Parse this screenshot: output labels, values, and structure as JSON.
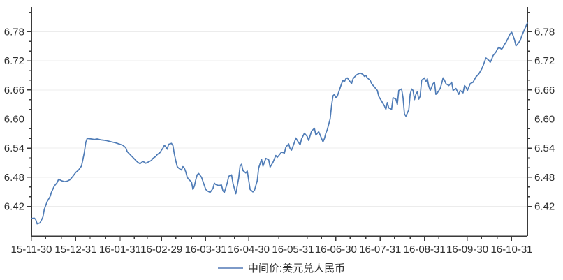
{
  "chart_data": {
    "type": "line",
    "title": "",
    "grid": "horizontal",
    "legend": {
      "label": "中间价:美元兑人民币",
      "position": "bottom-center"
    },
    "colors": {
      "line": "#4f7cb7",
      "legend_line": "#7d9ac8",
      "axis": "#3a3a3a",
      "grid": "#ececec",
      "text": "#2f2f2f",
      "background": "#ffffff"
    },
    "y_axis": {
      "mirrored_right": true,
      "range": [
        6.359,
        6.831
      ],
      "ticks": [
        {
          "v": 6.42,
          "label": "6.42"
        },
        {
          "v": 6.48,
          "label": "6.48"
        },
        {
          "v": 6.54,
          "label": "6.54"
        },
        {
          "v": 6.6,
          "label": "6.60"
        },
        {
          "v": 6.66,
          "label": "6.66"
        },
        {
          "v": 6.72,
          "label": "6.72"
        },
        {
          "v": 6.78,
          "label": "6.78"
        }
      ],
      "minor_ticks": [
        6.38,
        6.4,
        6.44,
        6.46,
        6.5,
        6.52,
        6.56,
        6.58,
        6.62,
        6.64,
        6.68,
        6.7,
        6.74,
        6.76,
        6.8,
        6.82
      ]
    },
    "x_axis": {
      "range": [
        "2015-11-30",
        "2016-11-11"
      ],
      "ticks": [
        {
          "date": "2015-11-30",
          "label": "15-11-30"
        },
        {
          "date": "2015-12-31",
          "label": "15-12-31"
        },
        {
          "date": "2016-01-31",
          "label": "16-01-31"
        },
        {
          "date": "2016-02-29",
          "label": "16-02-29"
        },
        {
          "date": "2016-03-31",
          "label": "16-03-31"
        },
        {
          "date": "2016-04-30",
          "label": "16-04-30"
        },
        {
          "date": "2016-05-31",
          "label": "16-05-31"
        },
        {
          "date": "2016-06-30",
          "label": "16-06-30"
        },
        {
          "date": "2016-07-31",
          "label": "16-07-31"
        },
        {
          "date": "2016-08-31",
          "label": "16-08-31"
        },
        {
          "date": "2016-09-30",
          "label": "16-09-30"
        },
        {
          "date": "2016-10-31",
          "label": "16-10-31"
        }
      ],
      "minor_ticks": [
        "2015-12-10",
        "2015-12-21",
        "2016-01-10",
        "2016-01-21",
        "2016-02-10",
        "2016-02-19",
        "2016-03-10",
        "2016-03-21",
        "2016-04-10",
        "2016-04-20",
        "2016-05-10",
        "2016-05-21",
        "2016-06-10",
        "2016-06-20",
        "2016-07-10",
        "2016-07-21",
        "2016-08-10",
        "2016-08-21",
        "2016-09-10",
        "2016-09-20",
        "2016-10-10",
        "2016-10-21"
      ]
    },
    "series": [
      {
        "name": "中间价:美元兑人民币",
        "points": [
          [
            "2015-11-30",
            6.395
          ],
          [
            "2015-12-02",
            6.396
          ],
          [
            "2015-12-03",
            6.393
          ],
          [
            "2015-12-04",
            6.384
          ],
          [
            "2015-12-06",
            6.386
          ],
          [
            "2015-12-08",
            6.398
          ],
          [
            "2015-12-09",
            6.414
          ],
          [
            "2015-12-11",
            6.43
          ],
          [
            "2015-12-13",
            6.44
          ],
          [
            "2015-12-14",
            6.449
          ],
          [
            "2015-12-16",
            6.462
          ],
          [
            "2015-12-18",
            6.469
          ],
          [
            "2015-12-19",
            6.476
          ],
          [
            "2015-12-21",
            6.473
          ],
          [
            "2015-12-23",
            6.471
          ],
          [
            "2015-12-25",
            6.472
          ],
          [
            "2015-12-27",
            6.475
          ],
          [
            "2015-12-29",
            6.482
          ],
          [
            "2015-12-31",
            6.49
          ],
          [
            "2016-01-02",
            6.495
          ],
          [
            "2016-01-04",
            6.503
          ],
          [
            "2016-01-05",
            6.517
          ],
          [
            "2016-01-06",
            6.531
          ],
          [
            "2016-01-07",
            6.552
          ],
          [
            "2016-01-08",
            6.56
          ],
          [
            "2016-01-11",
            6.559
          ],
          [
            "2016-01-13",
            6.558
          ],
          [
            "2016-01-15",
            6.559
          ],
          [
            "2016-01-18",
            6.557
          ],
          [
            "2016-01-21",
            6.556
          ],
          [
            "2016-01-25",
            6.553
          ],
          [
            "2016-01-28",
            6.551
          ],
          [
            "2016-01-31",
            6.548
          ],
          [
            "2016-02-02",
            6.546
          ],
          [
            "2016-02-04",
            6.541
          ],
          [
            "2016-02-05",
            6.533
          ],
          [
            "2016-02-08",
            6.524
          ],
          [
            "2016-02-10",
            6.518
          ],
          [
            "2016-02-12",
            6.512
          ],
          [
            "2016-02-14",
            6.508
          ],
          [
            "2016-02-16",
            6.513
          ],
          [
            "2016-02-18",
            6.509
          ],
          [
            "2016-02-20",
            6.512
          ],
          [
            "2016-02-22",
            6.515
          ],
          [
            "2016-02-23",
            6.519
          ],
          [
            "2016-02-25",
            6.523
          ],
          [
            "2016-02-26",
            6.527
          ],
          [
            "2016-02-28",
            6.531
          ],
          [
            "2016-02-29",
            6.536
          ],
          [
            "2016-03-01",
            6.54
          ],
          [
            "2016-03-02",
            6.546
          ],
          [
            "2016-03-03",
            6.543
          ],
          [
            "2016-03-04",
            6.538
          ],
          [
            "2016-03-05",
            6.548
          ],
          [
            "2016-03-07",
            6.55
          ],
          [
            "2016-03-08",
            6.545
          ],
          [
            "2016-03-09",
            6.528
          ],
          [
            "2016-03-10",
            6.514
          ],
          [
            "2016-03-11",
            6.502
          ],
          [
            "2016-03-12",
            6.499
          ],
          [
            "2016-03-14",
            6.495
          ],
          [
            "2016-03-15",
            6.502
          ],
          [
            "2016-03-16",
            6.499
          ],
          [
            "2016-03-17",
            6.491
          ],
          [
            "2016-03-18",
            6.48
          ],
          [
            "2016-03-19",
            6.476
          ],
          [
            "2016-03-21",
            6.47
          ],
          [
            "2016-03-22",
            6.455
          ],
          [
            "2016-03-23",
            6.462
          ],
          [
            "2016-03-24",
            6.475
          ],
          [
            "2016-03-25",
            6.485
          ],
          [
            "2016-03-26",
            6.488
          ],
          [
            "2016-03-28",
            6.48
          ],
          [
            "2016-03-30",
            6.463
          ],
          [
            "2016-03-31",
            6.455
          ],
          [
            "2016-04-01",
            6.452
          ],
          [
            "2016-04-03",
            6.449
          ],
          [
            "2016-04-05",
            6.457
          ],
          [
            "2016-04-06",
            6.468
          ],
          [
            "2016-04-07",
            6.465
          ],
          [
            "2016-04-09",
            6.463
          ],
          [
            "2016-04-11",
            6.464
          ],
          [
            "2016-04-12",
            6.452
          ],
          [
            "2016-04-13",
            6.449
          ],
          [
            "2016-04-15",
            6.468
          ],
          [
            "2016-04-16",
            6.482
          ],
          [
            "2016-04-18",
            6.485
          ],
          [
            "2016-04-19",
            6.468
          ],
          [
            "2016-04-21",
            6.446
          ],
          [
            "2016-04-23",
            6.478
          ],
          [
            "2016-04-24",
            6.503
          ],
          [
            "2016-04-25",
            6.507
          ],
          [
            "2016-04-26",
            6.494
          ],
          [
            "2016-04-28",
            6.489
          ],
          [
            "2016-04-29",
            6.493
          ],
          [
            "2016-05-01",
            6.455
          ],
          [
            "2016-05-03",
            6.45
          ],
          [
            "2016-05-04",
            6.453
          ],
          [
            "2016-05-06",
            6.473
          ],
          [
            "2016-05-07",
            6.499
          ],
          [
            "2016-05-09",
            6.517
          ],
          [
            "2016-05-10",
            6.503
          ],
          [
            "2016-05-12",
            6.519
          ],
          [
            "2016-05-14",
            6.516
          ],
          [
            "2016-05-15",
            6.501
          ],
          [
            "2016-05-17",
            6.511
          ],
          [
            "2016-05-19",
            6.525
          ],
          [
            "2016-05-20",
            6.521
          ],
          [
            "2016-05-23",
            6.532
          ],
          [
            "2016-05-25",
            6.53
          ],
          [
            "2016-05-26",
            6.542
          ],
          [
            "2016-05-28",
            6.549
          ],
          [
            "2016-05-29",
            6.539
          ],
          [
            "2016-05-30",
            6.536
          ],
          [
            "2016-06-01",
            6.552
          ],
          [
            "2016-06-02",
            6.561
          ],
          [
            "2016-06-03",
            6.556
          ],
          [
            "2016-06-05",
            6.547
          ],
          [
            "2016-06-06",
            6.559
          ],
          [
            "2016-06-08",
            6.571
          ],
          [
            "2016-06-10",
            6.564
          ],
          [
            "2016-06-11",
            6.556
          ],
          [
            "2016-06-13",
            6.575
          ],
          [
            "2016-06-15",
            6.581
          ],
          [
            "2016-06-16",
            6.567
          ],
          [
            "2016-06-18",
            6.574
          ],
          [
            "2016-06-20",
            6.56
          ],
          [
            "2016-06-21",
            6.553
          ],
          [
            "2016-06-22",
            6.56
          ],
          [
            "2016-06-23",
            6.571
          ],
          [
            "2016-06-24",
            6.578
          ],
          [
            "2016-06-26",
            6.6
          ],
          [
            "2016-06-27",
            6.628
          ],
          [
            "2016-06-28",
            6.648
          ],
          [
            "2016-06-29",
            6.651
          ],
          [
            "2016-06-30",
            6.644
          ],
          [
            "2016-07-01",
            6.647
          ],
          [
            "2016-07-04",
            6.673
          ],
          [
            "2016-07-05",
            6.68
          ],
          [
            "2016-07-06",
            6.677
          ],
          [
            "2016-07-07",
            6.683
          ],
          [
            "2016-07-08",
            6.685
          ],
          [
            "2016-07-10",
            6.677
          ],
          [
            "2016-07-11",
            6.673
          ],
          [
            "2016-07-12",
            6.683
          ],
          [
            "2016-07-14",
            6.69
          ],
          [
            "2016-07-15",
            6.692
          ],
          [
            "2016-07-17",
            6.695
          ],
          [
            "2016-07-19",
            6.692
          ],
          [
            "2016-07-20",
            6.688
          ],
          [
            "2016-07-21",
            6.69
          ],
          [
            "2016-07-22",
            6.685
          ],
          [
            "2016-07-24",
            6.68
          ],
          [
            "2016-07-25",
            6.673
          ],
          [
            "2016-07-27",
            6.666
          ],
          [
            "2016-07-29",
            6.659
          ],
          [
            "2016-07-30",
            6.647
          ],
          [
            "2016-08-01",
            6.637
          ],
          [
            "2016-08-03",
            6.627
          ],
          [
            "2016-08-04",
            6.62
          ],
          [
            "2016-08-05",
            6.634
          ],
          [
            "2016-08-06",
            6.623
          ],
          [
            "2016-08-08",
            6.62
          ],
          [
            "2016-08-09",
            6.644
          ],
          [
            "2016-08-11",
            6.641
          ],
          [
            "2016-08-12",
            6.63
          ],
          [
            "2016-08-13",
            6.659
          ],
          [
            "2016-08-15",
            6.662
          ],
          [
            "2016-08-16",
            6.644
          ],
          [
            "2016-08-17",
            6.611
          ],
          [
            "2016-08-18",
            6.606
          ],
          [
            "2016-08-20",
            6.619
          ],
          [
            "2016-08-21",
            6.651
          ],
          [
            "2016-08-22",
            6.662
          ],
          [
            "2016-08-23",
            6.659
          ],
          [
            "2016-08-24",
            6.64
          ],
          [
            "2016-08-25",
            6.651
          ],
          [
            "2016-08-26",
            6.656
          ],
          [
            "2016-08-27",
            6.641
          ],
          [
            "2016-08-28",
            6.647
          ],
          [
            "2016-08-29",
            6.68
          ],
          [
            "2016-08-31",
            6.685
          ],
          [
            "2016-09-01",
            6.677
          ],
          [
            "2016-09-02",
            6.683
          ],
          [
            "2016-09-03",
            6.668
          ],
          [
            "2016-09-04",
            6.659
          ],
          [
            "2016-09-06",
            6.673
          ],
          [
            "2016-09-07",
            6.676
          ],
          [
            "2016-09-08",
            6.651
          ],
          [
            "2016-09-09",
            6.654
          ],
          [
            "2016-09-11",
            6.663
          ],
          [
            "2016-09-12",
            6.673
          ],
          [
            "2016-09-13",
            6.685
          ],
          [
            "2016-09-14",
            6.68
          ],
          [
            "2016-09-15",
            6.673
          ],
          [
            "2016-09-17",
            6.669
          ],
          [
            "2016-09-19",
            6.676
          ],
          [
            "2016-09-20",
            6.659
          ],
          [
            "2016-09-22",
            6.663
          ],
          [
            "2016-09-24",
            6.651
          ],
          [
            "2016-09-25",
            6.659
          ],
          [
            "2016-09-27",
            6.654
          ],
          [
            "2016-09-28",
            6.669
          ],
          [
            "2016-09-29",
            6.666
          ],
          [
            "2016-09-30",
            6.659
          ],
          [
            "2016-10-02",
            6.673
          ],
          [
            "2016-10-04",
            6.676
          ],
          [
            "2016-10-06",
            6.687
          ],
          [
            "2016-10-08",
            6.693
          ],
          [
            "2016-10-10",
            6.703
          ],
          [
            "2016-10-11",
            6.71
          ],
          [
            "2016-10-12",
            6.718
          ],
          [
            "2016-10-13",
            6.726
          ],
          [
            "2016-10-15",
            6.721
          ],
          [
            "2016-10-16",
            6.717
          ],
          [
            "2016-10-17",
            6.723
          ],
          [
            "2016-10-18",
            6.731
          ],
          [
            "2016-10-20",
            6.738
          ],
          [
            "2016-10-21",
            6.744
          ],
          [
            "2016-10-22",
            6.748
          ],
          [
            "2016-10-24",
            6.744
          ],
          [
            "2016-10-25",
            6.748
          ],
          [
            "2016-10-26",
            6.754
          ],
          [
            "2016-10-27",
            6.758
          ],
          [
            "2016-10-28",
            6.764
          ],
          [
            "2016-10-29",
            6.77
          ],
          [
            "2016-10-30",
            6.776
          ],
          [
            "2016-10-31",
            6.779
          ],
          [
            "2016-11-01",
            6.772
          ],
          [
            "2016-11-02",
            6.763
          ],
          [
            "2016-11-03",
            6.751
          ],
          [
            "2016-11-04",
            6.754
          ],
          [
            "2016-11-06",
            6.762
          ],
          [
            "2016-11-07",
            6.771
          ],
          [
            "2016-11-08",
            6.778
          ],
          [
            "2016-11-09",
            6.785
          ],
          [
            "2016-11-11",
            6.798
          ]
        ]
      }
    ]
  }
}
